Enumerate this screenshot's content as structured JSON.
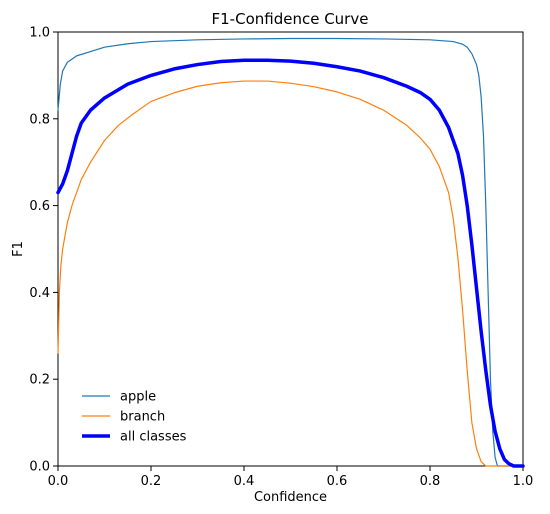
{
  "chart_data": {
    "type": "line",
    "title": "F1-Confidence Curve",
    "xlabel": "Confidence",
    "ylabel": "F1",
    "xlim": [
      0,
      1
    ],
    "ylim": [
      0,
      1
    ],
    "xticks": [
      "0.0",
      "0.2",
      "0.4",
      "0.6",
      "0.8",
      "1.0"
    ],
    "yticks": [
      "0.0",
      "0.2",
      "0.4",
      "0.6",
      "0.8",
      "1.0"
    ],
    "grid": false,
    "legend_position": "lower-left",
    "series": [
      {
        "name": "apple",
        "color": "#1f77b4",
        "points": [
          [
            0.0,
            0.82
          ],
          [
            0.005,
            0.88
          ],
          [
            0.01,
            0.91
          ],
          [
            0.02,
            0.93
          ],
          [
            0.04,
            0.945
          ],
          [
            0.07,
            0.955
          ],
          [
            0.1,
            0.965
          ],
          [
            0.15,
            0.973
          ],
          [
            0.2,
            0.978
          ],
          [
            0.3,
            0.982
          ],
          [
            0.4,
            0.984
          ],
          [
            0.5,
            0.985
          ],
          [
            0.6,
            0.985
          ],
          [
            0.7,
            0.984
          ],
          [
            0.8,
            0.982
          ],
          [
            0.85,
            0.978
          ],
          [
            0.87,
            0.972
          ],
          [
            0.88,
            0.965
          ],
          [
            0.89,
            0.95
          ],
          [
            0.9,
            0.925
          ],
          [
            0.905,
            0.9
          ],
          [
            0.91,
            0.85
          ],
          [
            0.915,
            0.76
          ],
          [
            0.92,
            0.6
          ],
          [
            0.925,
            0.4
          ],
          [
            0.93,
            0.2
          ],
          [
            0.935,
            0.08
          ],
          [
            0.94,
            0.02
          ],
          [
            0.945,
            0.0
          ],
          [
            1.0,
            0.0
          ]
        ]
      },
      {
        "name": "branch",
        "color": "#ff7f0e",
        "points": [
          [
            0.0,
            0.26
          ],
          [
            0.003,
            0.4
          ],
          [
            0.006,
            0.46
          ],
          [
            0.01,
            0.5
          ],
          [
            0.02,
            0.56
          ],
          [
            0.03,
            0.6
          ],
          [
            0.05,
            0.66
          ],
          [
            0.07,
            0.7
          ],
          [
            0.1,
            0.75
          ],
          [
            0.13,
            0.785
          ],
          [
            0.16,
            0.81
          ],
          [
            0.2,
            0.84
          ],
          [
            0.25,
            0.86
          ],
          [
            0.3,
            0.875
          ],
          [
            0.35,
            0.883
          ],
          [
            0.4,
            0.887
          ],
          [
            0.45,
            0.887
          ],
          [
            0.5,
            0.882
          ],
          [
            0.55,
            0.874
          ],
          [
            0.6,
            0.862
          ],
          [
            0.65,
            0.845
          ],
          [
            0.7,
            0.82
          ],
          [
            0.75,
            0.785
          ],
          [
            0.78,
            0.755
          ],
          [
            0.8,
            0.73
          ],
          [
            0.82,
            0.69
          ],
          [
            0.84,
            0.63
          ],
          [
            0.85,
            0.57
          ],
          [
            0.86,
            0.48
          ],
          [
            0.87,
            0.36
          ],
          [
            0.88,
            0.22
          ],
          [
            0.89,
            0.1
          ],
          [
            0.9,
            0.04
          ],
          [
            0.91,
            0.01
          ],
          [
            0.92,
            0.0
          ],
          [
            1.0,
            0.0
          ]
        ]
      },
      {
        "name": "all classes",
        "color": "#0000ff",
        "points": [
          [
            0.0,
            0.63
          ],
          [
            0.01,
            0.65
          ],
          [
            0.02,
            0.68
          ],
          [
            0.03,
            0.72
          ],
          [
            0.04,
            0.76
          ],
          [
            0.05,
            0.79
          ],
          [
            0.07,
            0.82
          ],
          [
            0.1,
            0.848
          ],
          [
            0.15,
            0.88
          ],
          [
            0.2,
            0.9
          ],
          [
            0.25,
            0.915
          ],
          [
            0.3,
            0.925
          ],
          [
            0.35,
            0.932
          ],
          [
            0.4,
            0.935
          ],
          [
            0.45,
            0.935
          ],
          [
            0.5,
            0.933
          ],
          [
            0.55,
            0.928
          ],
          [
            0.6,
            0.92
          ],
          [
            0.65,
            0.91
          ],
          [
            0.7,
            0.895
          ],
          [
            0.75,
            0.875
          ],
          [
            0.78,
            0.86
          ],
          [
            0.8,
            0.845
          ],
          [
            0.82,
            0.82
          ],
          [
            0.84,
            0.78
          ],
          [
            0.86,
            0.72
          ],
          [
            0.87,
            0.67
          ],
          [
            0.88,
            0.6
          ],
          [
            0.89,
            0.51
          ],
          [
            0.9,
            0.41
          ],
          [
            0.91,
            0.31
          ],
          [
            0.92,
            0.22
          ],
          [
            0.93,
            0.14
          ],
          [
            0.94,
            0.08
          ],
          [
            0.95,
            0.04
          ],
          [
            0.96,
            0.015
          ],
          [
            0.97,
            0.005
          ],
          [
            0.98,
            0.0
          ],
          [
            1.0,
            0.0
          ]
        ]
      }
    ]
  }
}
